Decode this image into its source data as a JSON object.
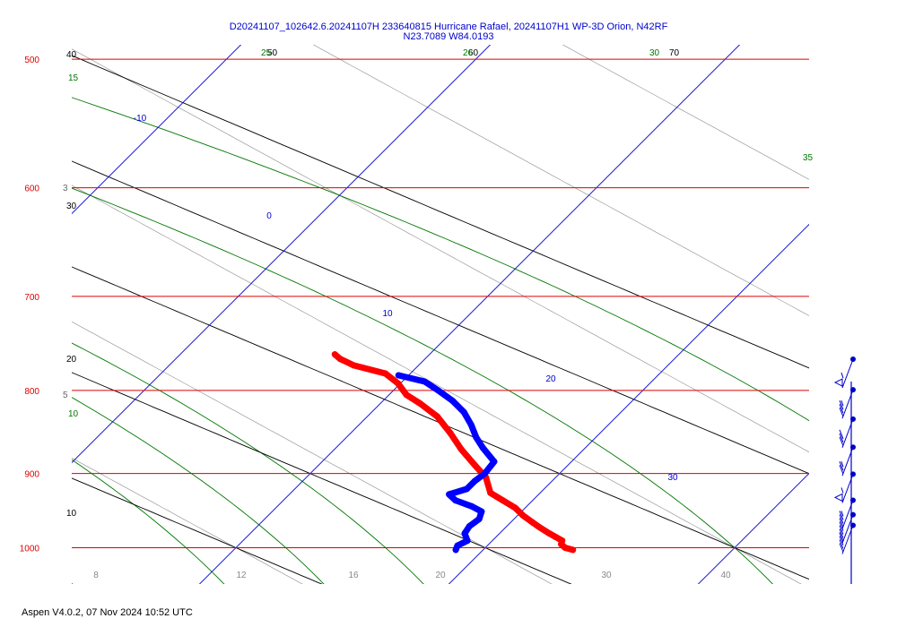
{
  "title_line1": "D20241107_102642.6.20241107H 233640815 Hurricane Rafael, 20241107H1 WP-3D Orion, N42RF",
  "title_line2": "N23.7089 W84.0193",
  "footer": "Aspen V4.0.2, 07 Nov 2024  10:52 UTC",
  "colors": {
    "isobar": "#dd0000",
    "isotherm": "#0000cc",
    "dry_adiabat": "#000000",
    "moist_adiabat": "#007700",
    "mixing_ratio": "#999999",
    "temperature": "#ff0000",
    "dewpoint": "#0000ff",
    "wind": "#0000cc"
  },
  "chart_data": {
    "type": "skew-t",
    "title": "D20241107_102642.6.20241107H 233640815 Hurricane Rafael, 20241107H1 WP-3D Orion, N42RF",
    "subtitle": "N23.7089 W84.0193",
    "pressure_range": [
      1000,
      500
    ],
    "isobars": [
      {
        "p": 500,
        "label": "500"
      },
      {
        "p": 600,
        "label": "600"
      },
      {
        "p": 700,
        "label": "700"
      },
      {
        "p": 800,
        "label": "800"
      },
      {
        "p": 900,
        "label": "900"
      },
      {
        "p": 1000,
        "label": "1000"
      }
    ],
    "isotherms": [
      {
        "label": "-10",
        "t": -10
      },
      {
        "label": "0",
        "t": 0
      },
      {
        "label": "10",
        "t": 10
      },
      {
        "label": "20",
        "t": 20
      },
      {
        "label": "30",
        "t": 30
      }
    ],
    "bottom_temperature_labels": [
      "8",
      "12",
      "16",
      "20",
      "30",
      "40"
    ],
    "dry_adiabat_labels": [
      "40",
      "30",
      "20",
      "10",
      "50",
      "60",
      "70"
    ],
    "moist_adiabat_labels": [
      "15",
      "10",
      "25",
      "26",
      "30",
      "35"
    ],
    "mixing_ratio_labels": [
      "3",
      "5"
    ],
    "series": [
      {
        "name": "Temperature",
        "points": [
          {
            "p": 1003,
            "t": 23.6
          },
          {
            "p": 1000,
            "t": 23.2
          },
          {
            "p": 995,
            "t": 22.9
          },
          {
            "p": 990,
            "t": 22.8
          },
          {
            "p": 985,
            "t": 22.4
          },
          {
            "p": 980,
            "t": 22.0
          },
          {
            "p": 972,
            "t": 21.4
          },
          {
            "p": 965,
            "t": 20.9
          },
          {
            "p": 955,
            "t": 20.2
          },
          {
            "p": 945,
            "t": 19.6
          },
          {
            "p": 935,
            "t": 18.8
          },
          {
            "p": 925,
            "t": 18.0
          },
          {
            "p": 905,
            "t": 17.2
          },
          {
            "p": 890,
            "t": 16.3
          },
          {
            "p": 870,
            "t": 15.1
          },
          {
            "p": 850,
            "t": 14.0
          },
          {
            "p": 830,
            "t": 12.8
          },
          {
            "p": 815,
            "t": 11.6
          },
          {
            "p": 805,
            "t": 10.7
          },
          {
            "p": 792,
            "t": 9.9
          },
          {
            "p": 781,
            "t": 9.0
          },
          {
            "p": 772,
            "t": 7.4
          },
          {
            "p": 765,
            "t": 6.6
          },
          {
            "p": 760,
            "t": 6.2
          }
        ]
      },
      {
        "name": "Dewpoint",
        "points": [
          {
            "p": 1003,
            "t": 18.9
          },
          {
            "p": 997,
            "t": 18.8
          },
          {
            "p": 990,
            "t": 19.0
          },
          {
            "p": 980,
            "t": 18.6
          },
          {
            "p": 970,
            "t": 18.5
          },
          {
            "p": 960,
            "t": 18.6
          },
          {
            "p": 950,
            "t": 18.4
          },
          {
            "p": 943,
            "t": 17.8
          },
          {
            "p": 935,
            "t": 16.9
          },
          {
            "p": 927,
            "t": 16.4
          },
          {
            "p": 920,
            "t": 16.9
          },
          {
            "p": 910,
            "t": 16.9
          },
          {
            "p": 900,
            "t": 17.0
          },
          {
            "p": 885,
            "t": 16.9
          },
          {
            "p": 868,
            "t": 15.9
          },
          {
            "p": 855,
            "t": 15.2
          },
          {
            "p": 840,
            "t": 14.5
          },
          {
            "p": 825,
            "t": 13.7
          },
          {
            "p": 812,
            "t": 12.8
          },
          {
            "p": 800,
            "t": 11.8
          },
          {
            "p": 790,
            "t": 10.9
          },
          {
            "p": 783,
            "t": 9.6
          }
        ]
      }
    ],
    "wind_barbs": [
      {
        "p": 790,
        "speed_kt": 55
      },
      {
        "p": 825,
        "speed_kt": 35
      },
      {
        "p": 860,
        "speed_kt": 30
      },
      {
        "p": 895,
        "speed_kt": 25
      },
      {
        "p": 930,
        "speed_kt": 55
      },
      {
        "p": 965,
        "speed_kt": 35
      },
      {
        "p": 985,
        "speed_kt": 40
      },
      {
        "p": 1000,
        "speed_kt": 40
      }
    ]
  }
}
